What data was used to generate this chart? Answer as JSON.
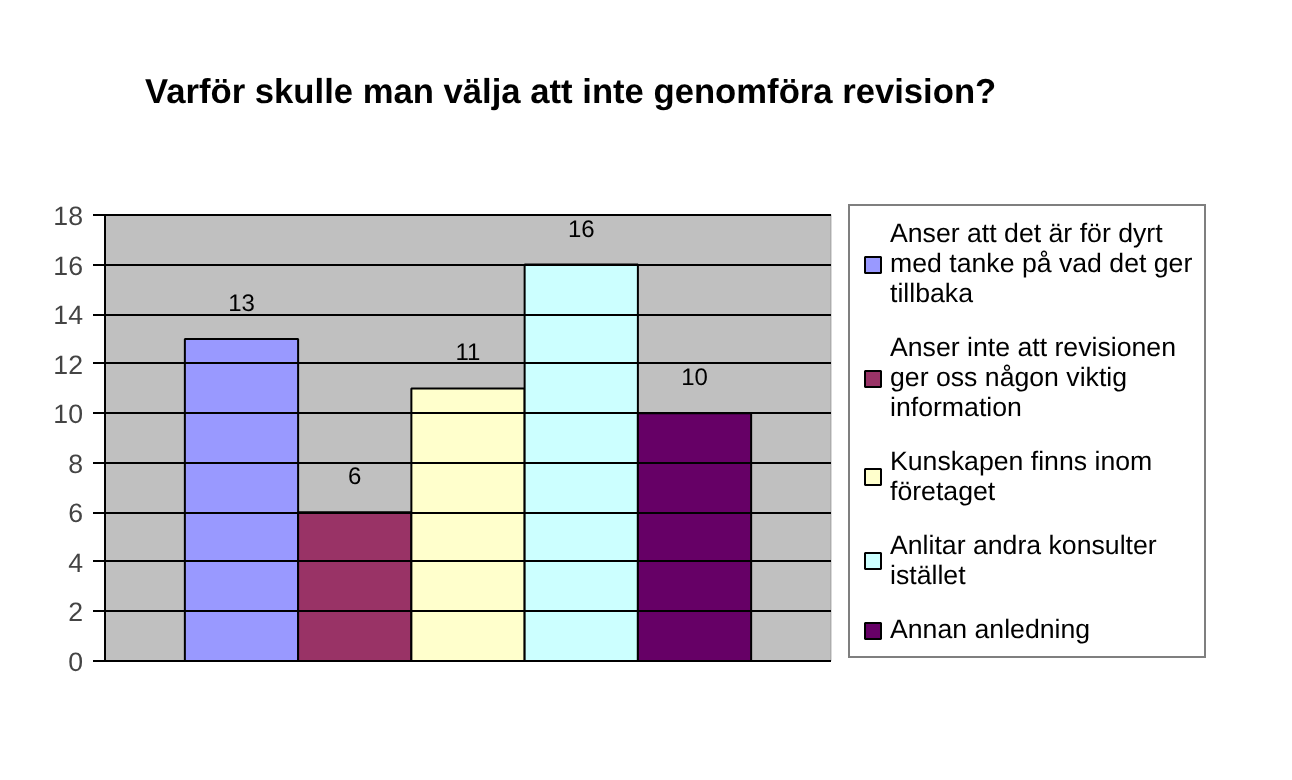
{
  "chart_data": {
    "type": "bar",
    "title": "Varför skulle man välja att inte genomföra revision?",
    "categories": [
      null
    ],
    "series": [
      {
        "name": "Anser att det är för dyrt med tanke på vad det ger tillbaka",
        "color": "#9999ff",
        "values": [
          13
        ]
      },
      {
        "name": "Anser inte att revisionen ger oss någon viktig information",
        "color": "#993366",
        "values": [
          6
        ]
      },
      {
        "name": "Kunskapen finns inom företaget",
        "color": "#ffffcc",
        "values": [
          11
        ]
      },
      {
        "name": "Anlitar andra konsulter istället",
        "color": "#ccffff",
        "values": [
          16
        ]
      },
      {
        "name": "Annan anledning",
        "color": "#660066",
        "values": [
          10
        ]
      }
    ],
    "ylim": [
      0,
      18
    ],
    "yticks": [
      0,
      2,
      4,
      6,
      8,
      10,
      12,
      14,
      16,
      18
    ],
    "grid": "y",
    "legend": "right",
    "data_labels": true
  }
}
